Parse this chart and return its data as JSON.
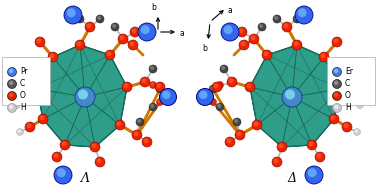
{
  "background_color": "#ffffff",
  "left_label": "Λ",
  "right_label": "Δ",
  "left_legend": [
    {
      "label": "Pr",
      "color": "#4477ee"
    },
    {
      "label": "C",
      "color": "#555555"
    },
    {
      "label": "O",
      "color": "#dd2200"
    },
    {
      "label": "H",
      "color": "#c8c8c8"
    }
  ],
  "right_legend": [
    {
      "label": "Er",
      "color": "#4477ee"
    },
    {
      "label": "C",
      "color": "#555555"
    },
    {
      "label": "O",
      "color": "#dd2200"
    },
    {
      "label": "H",
      "color": "#c8c8c8"
    }
  ],
  "teal_face": "#2e9e8a",
  "teal_dark": "#1a6a58",
  "teal_light": "#40c0a8",
  "orange_bond": "#cc7700",
  "gray_bond": "#999999",
  "silver_bond": "#b8b8b8",
  "blue_atom": "#3366ee",
  "blue_center": "#4488cc",
  "red_atom": "#ee2200",
  "dark_atom": "#444444",
  "light_atom": "#cccccc",
  "figsize": [
    3.77,
    1.89
  ],
  "dpi": 100
}
